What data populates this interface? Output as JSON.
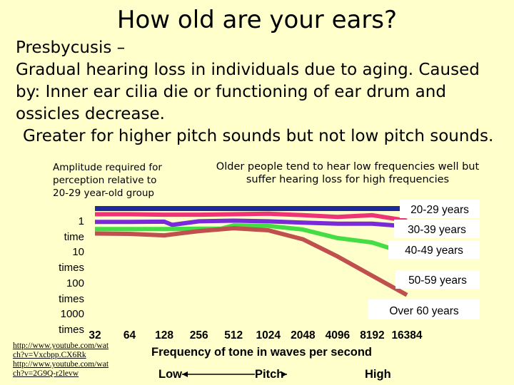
{
  "slide": {
    "title": "How old are your ears?",
    "body_lines": [
      "Presbycusis –",
      "Gradual hearing loss in individuals due to aging. Caused",
      "by: Inner ear cilia die or functioning of ear drum and",
      "ossicles decrease.",
      "Greater for higher pitch sounds but not low pitch sounds."
    ],
    "links": [
      "http://www.youtube.com/wat",
      "ch?v=Vxcbpp.CX6Rk",
      "http://www.youtube.com/wat",
      "ch?v=2G9Q-r2levw"
    ]
  },
  "chart_data": {
    "type": "line",
    "title": "",
    "ylabel_lines": [
      "Amplitude required for",
      "perception relative to",
      "20-29 year-old group"
    ],
    "annotation_lines": [
      "Older people tend to hear low frequencies well but",
      "suffer hearing loss for high frequencies"
    ],
    "y_tick_lines": [
      "1",
      "time",
      "10",
      "times",
      "100",
      "times",
      "1000",
      "times"
    ],
    "y_scale": "log",
    "ylim": [
      1,
      1000
    ],
    "xlabel": "Frequency of tone in waves per second",
    "x_scale": "log2",
    "x": [
      32,
      64,
      128,
      256,
      512,
      1024,
      2048,
      4096,
      8192,
      16384
    ],
    "x_tick_labels": [
      "32",
      "64",
      "128",
      "256",
      "512",
      "1024",
      "2048",
      "4096",
      "8192",
      "16384"
    ],
    "pitch_labels": {
      "low": "Low",
      "mid": "Pitch",
      "high": "High"
    },
    "series": [
      {
        "name": "20-29 years",
        "color": "#1f2a9a",
        "points": [
          [
            32,
            1.3
          ],
          [
            64,
            1.3
          ],
          [
            128,
            1.3
          ],
          [
            256,
            1.3
          ],
          [
            512,
            1.3
          ],
          [
            1024,
            1.3
          ],
          [
            2048,
            1.3
          ],
          [
            4096,
            1.3
          ],
          [
            8192,
            1.3
          ],
          [
            16384,
            1.3
          ]
        ]
      },
      {
        "name": "30-39 years",
        "color": "#ee3377",
        "points": [
          [
            32,
            1.8
          ],
          [
            64,
            1.8
          ],
          [
            128,
            1.85
          ],
          [
            256,
            1.85
          ],
          [
            512,
            1.8
          ],
          [
            1024,
            1.75
          ],
          [
            2048,
            1.9
          ],
          [
            4096,
            2.1
          ],
          [
            8192,
            1.9
          ],
          [
            16384,
            2.6
          ]
        ]
      },
      {
        "name": "40-49 years",
        "color": "#7a2ad8",
        "points": [
          [
            32,
            2.8
          ],
          [
            64,
            2.8
          ],
          [
            128,
            2.75
          ],
          [
            150,
            3.3
          ],
          [
            256,
            2.7
          ],
          [
            512,
            2.6
          ],
          [
            1024,
            2.7
          ],
          [
            2048,
            2.9
          ],
          [
            4096,
            3.1
          ],
          [
            8192,
            3.1
          ],
          [
            16384,
            3.6
          ]
        ]
      },
      {
        "name": "50-59 years",
        "color": "#44dd44",
        "points": [
          [
            32,
            4.2
          ],
          [
            64,
            4.2
          ],
          [
            128,
            4.2
          ],
          [
            256,
            4.1
          ],
          [
            400,
            4.1
          ],
          [
            512,
            3.4
          ],
          [
            1024,
            3.5
          ],
          [
            2048,
            4.3
          ],
          [
            4096,
            7.0
          ],
          [
            8192,
            9.0
          ],
          [
            16384,
            17.0
          ]
        ]
      },
      {
        "name": "Over 60 years",
        "color": "#c0504d",
        "points": [
          [
            32,
            5.4
          ],
          [
            64,
            5.5
          ],
          [
            128,
            6.0
          ],
          [
            256,
            4.7
          ],
          [
            512,
            4.0
          ],
          [
            1024,
            4.5
          ],
          [
            2048,
            7.5
          ],
          [
            4096,
            20
          ],
          [
            8192,
            60
          ],
          [
            16384,
            180
          ]
        ]
      }
    ]
  }
}
